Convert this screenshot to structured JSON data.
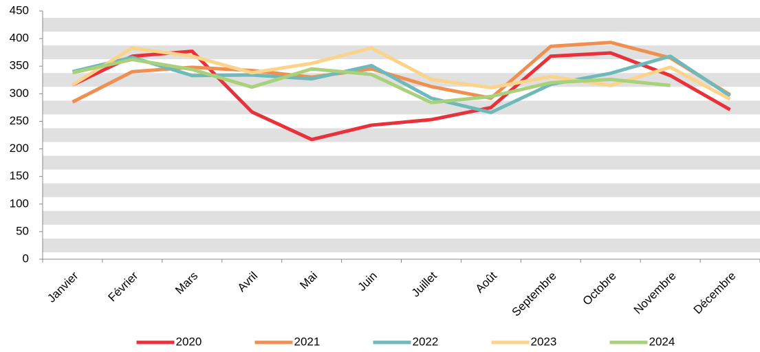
{
  "chart_data": {
    "type": "line",
    "categories": [
      "Janvier",
      "Février",
      "Mars",
      "Avril",
      "Mai",
      "Juin",
      "Juillet",
      "Août",
      "Septembre",
      "Octobre",
      "Novembre",
      "Décembre"
    ],
    "series": [
      {
        "name": "2020",
        "color": "#e8313b",
        "values": [
          316,
          368,
          377,
          267,
          217,
          243,
          253,
          275,
          368,
          374,
          333,
          271
        ]
      },
      {
        "name": "2021",
        "color": "#ee9052",
        "values": [
          285,
          340,
          348,
          342,
          330,
          345,
          313,
          292,
          386,
          393,
          365,
          298
        ]
      },
      {
        "name": "2022",
        "color": "#6fb9bb",
        "values": [
          340,
          366,
          333,
          334,
          327,
          351,
          292,
          266,
          317,
          337,
          368,
          296
        ]
      },
      {
        "name": "2023",
        "color": "#fcd38a",
        "values": [
          316,
          383,
          368,
          338,
          355,
          383,
          326,
          311,
          331,
          315,
          348,
          290
        ]
      },
      {
        "name": "2024",
        "color": "#a9d17b",
        "values": [
          338,
          362,
          344,
          312,
          345,
          335,
          284,
          295,
          320,
          326,
          315,
          null
        ]
      }
    ],
    "ylim": [
      0,
      450
    ],
    "yticks": [
      0,
      50,
      100,
      150,
      200,
      250,
      300,
      350,
      400,
      450
    ],
    "grid": true,
    "legend": "bottom"
  }
}
